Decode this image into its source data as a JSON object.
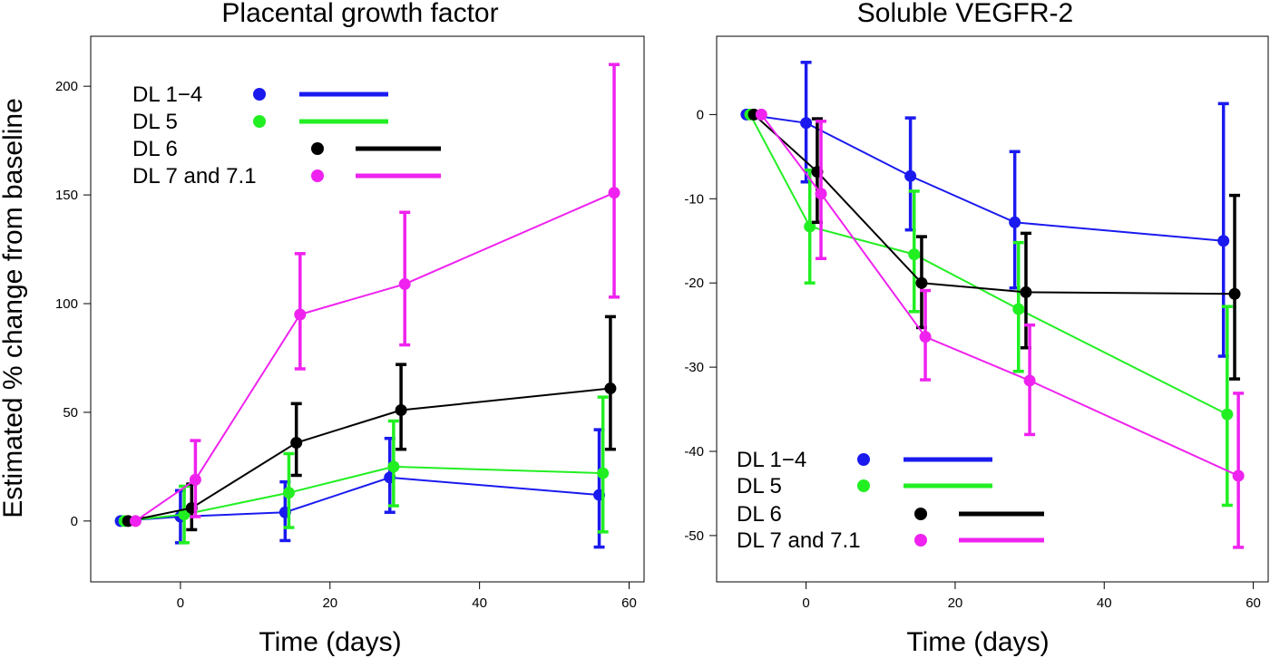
{
  "chart_data": [
    {
      "type": "line",
      "title": "Placental growth factor",
      "xlabel": "Time (days)",
      "ylabel": "Estimated % change from baseline",
      "xlim": [
        -12,
        62
      ],
      "ylim": [
        -28,
        223
      ],
      "xticks": [
        0,
        20,
        40,
        60
      ],
      "yticks": [
        0,
        50,
        100,
        150,
        200
      ],
      "grid": false,
      "legend_position": "top-left",
      "series": [
        {
          "name": "DL 1−4",
          "color": "#1a1aef",
          "x": [
            -8,
            0,
            14,
            28,
            56
          ],
          "y": [
            0,
            2,
            4,
            20,
            12
          ],
          "lower": [
            null,
            -10,
            -9,
            4,
            -12
          ],
          "upper": [
            null,
            14,
            18,
            38,
            42
          ]
        },
        {
          "name": "DL 5",
          "color": "#22ef22",
          "x": [
            -7.5,
            0.5,
            14.5,
            28.5,
            56.5
          ],
          "y": [
            0,
            3,
            13,
            25,
            22
          ],
          "lower": [
            null,
            -10,
            -3,
            7,
            -5
          ],
          "upper": [
            null,
            16,
            31,
            46,
            57
          ]
        },
        {
          "name": "DL 6",
          "color": "#000000",
          "x": [
            -7,
            1.5,
            15.5,
            29.5,
            57.5
          ],
          "y": [
            0,
            6,
            36,
            51,
            61
          ],
          "lower": [
            null,
            -4,
            21,
            33,
            33
          ],
          "upper": [
            null,
            17,
            54,
            72,
            94
          ]
        },
        {
          "name": "DL 7 and 7.1",
          "color": "#ef22ef",
          "x": [
            -6,
            2,
            16,
            30,
            58
          ],
          "y": [
            0,
            19,
            95,
            109,
            151
          ],
          "lower": [
            null,
            2,
            70,
            81,
            103
          ],
          "upper": [
            null,
            37,
            123,
            142,
            210
          ]
        }
      ]
    },
    {
      "type": "line",
      "title": "Soluble VEGFR-2",
      "xlabel": "Time (days)",
      "ylabel": "",
      "xlim": [
        -12,
        62
      ],
      "ylim": [
        -55.5,
        9.3
      ],
      "xticks": [
        0,
        20,
        40,
        60
      ],
      "yticks": [
        0,
        -10,
        -20,
        -30,
        -40,
        -50
      ],
      "grid": false,
      "legend_position": "bottom-left",
      "series": [
        {
          "name": "DL 1−4",
          "color": "#1a1aef",
          "x": [
            -8,
            0,
            14,
            28,
            56
          ],
          "y": [
            0,
            -1,
            -7.3,
            -12.8,
            -15
          ],
          "lower": [
            null,
            -8,
            -13.7,
            -20.6,
            -28.7
          ],
          "upper": [
            null,
            6.2,
            -0.4,
            -4.4,
            1.3
          ]
        },
        {
          "name": "DL 5",
          "color": "#22ef22",
          "x": [
            -7.5,
            0.5,
            14.5,
            28.5,
            56.5
          ],
          "y": [
            0,
            -13.3,
            -16.6,
            -23.1,
            -35.6
          ],
          "lower": [
            null,
            -20,
            -23.4,
            -30.5,
            -46.4
          ],
          "upper": [
            null,
            -6.6,
            -9.1,
            -15.2,
            -22.8
          ]
        },
        {
          "name": "DL 6",
          "color": "#000000",
          "x": [
            -7,
            1.5,
            15.5,
            29.5,
            57.5
          ],
          "y": [
            0,
            -6.8,
            -20,
            -21.1,
            -21.3
          ],
          "lower": [
            null,
            -12.8,
            -25.3,
            -27.7,
            -31.4
          ],
          "upper": [
            null,
            -0.5,
            -14.5,
            -14.1,
            -9.6
          ]
        },
        {
          "name": "DL 7 and 7.1",
          "color": "#ef22ef",
          "x": [
            -6,
            2,
            16,
            30,
            58
          ],
          "y": [
            0,
            -9.4,
            -26.4,
            -31.6,
            -42.9
          ],
          "lower": [
            null,
            -17.1,
            -31.5,
            -38,
            -51.4
          ],
          "upper": [
            null,
            -0.8,
            -20.9,
            -25,
            -33.1
          ]
        }
      ]
    }
  ]
}
